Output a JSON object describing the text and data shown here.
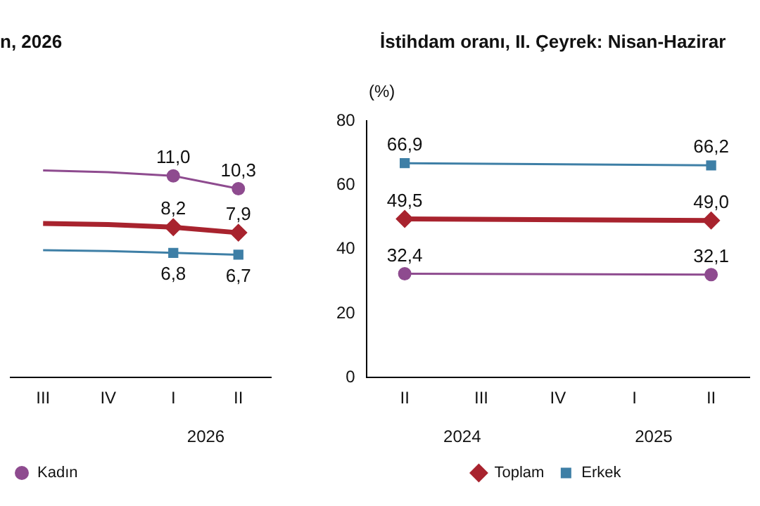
{
  "chart_data": [
    {
      "type": "line",
      "title": "n, 2026",
      "categories": [
        "III",
        "IV",
        "I",
        "II"
      ],
      "tick_labels": "x",
      "legend": "bottom left",
      "grid": false,
      "annotations": [
        "2026"
      ],
      "series": [
        {
          "color": "#a8232e",
          "marker": "diamond",
          "values": [
            8.4,
            8.35,
            8.2,
            7.9
          ],
          "value_labels": [
            null,
            null,
            "8,2",
            "7,9"
          ]
        },
        {
          "color": "#3e7fa6",
          "marker": "square",
          "values": [
            6.95,
            6.9,
            6.8,
            6.7
          ],
          "value_labels": [
            null,
            null,
            "6,8",
            "6,7"
          ]
        },
        {
          "name": "Kadın",
          "color": "#8e4b8f",
          "marker": "circle",
          "values": [
            11.3,
            11.2,
            11.0,
            10.3
          ],
          "value_labels": [
            null,
            null,
            "11,0",
            "10,3"
          ]
        }
      ]
    },
    {
      "type": "line",
      "title": "İstihdam oranı, II. Çeyrek: Nisan-Hazirar",
      "ylabel": "(%)",
      "categories": [
        "II",
        "III",
        "IV",
        "I",
        "II"
      ],
      "ylim": [
        0,
        80
      ],
      "yticks": [
        0,
        20,
        40,
        60,
        80
      ],
      "legend": "bottom",
      "grid": false,
      "annotations": [
        "2024",
        "2025"
      ],
      "series": [
        {
          "name": "Toplam",
          "color": "#a8232e",
          "marker": "diamond",
          "values": [
            49.5,
            null,
            null,
            null,
            49.0
          ],
          "value_labels": [
            "49,5",
            null,
            null,
            null,
            "49,0"
          ]
        },
        {
          "name": "Erkek",
          "color": "#3e7fa6",
          "marker": "square",
          "values": [
            66.9,
            null,
            null,
            null,
            66.2
          ],
          "value_labels": [
            "66,9",
            null,
            null,
            null,
            "66,2"
          ]
        },
        {
          "color": "#8e4b8f",
          "marker": "circle",
          "values": [
            32.4,
            null,
            null,
            null,
            32.1
          ],
          "value_labels": [
            "32,4",
            null,
            null,
            null,
            "32,1"
          ]
        }
      ]
    }
  ]
}
